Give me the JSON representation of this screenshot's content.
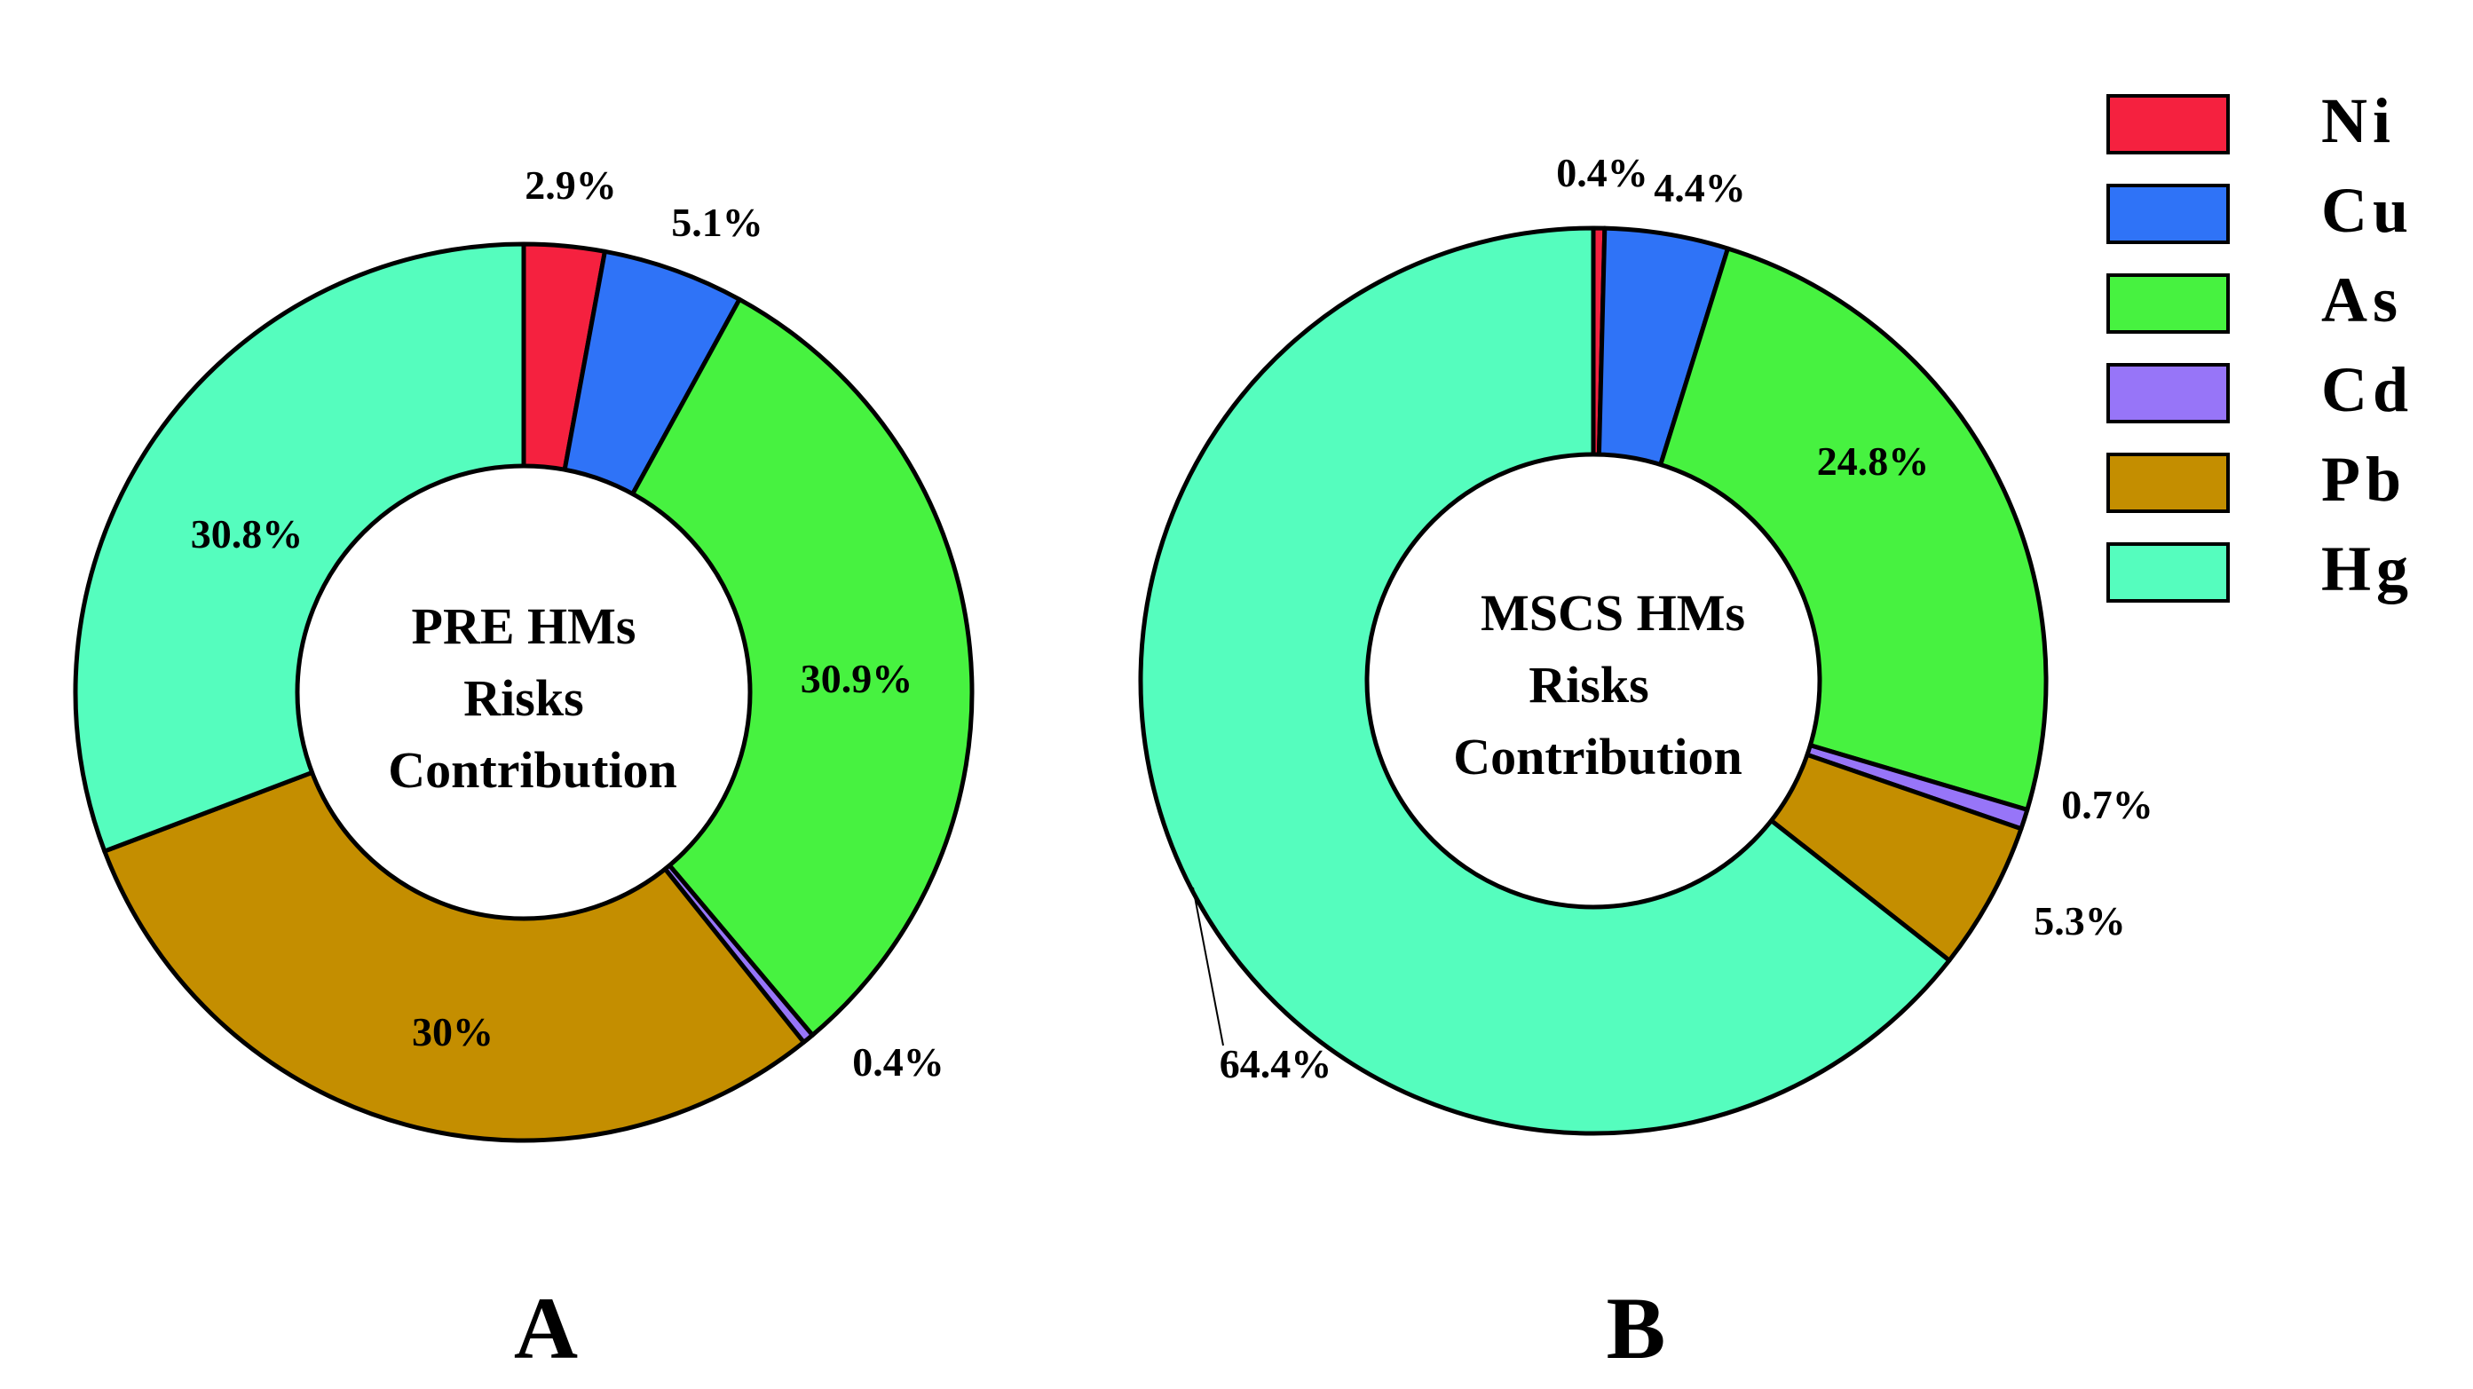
{
  "legend": {
    "items": [
      {
        "label": "Ni",
        "color": "#F5213F"
      },
      {
        "label": "Cu",
        "color": "#2F73F7"
      },
      {
        "label": "As",
        "color": "#47F240"
      },
      {
        "label": "Cd",
        "color": "#9775F8"
      },
      {
        "label": "Pb",
        "color": "#C48E00"
      },
      {
        "label": "Hg",
        "color": "#55FDBE"
      }
    ]
  },
  "chart_data": [
    {
      "type": "pie",
      "subtype": "donut",
      "panel_label": "A",
      "center_label": [
        "PRE HMs",
        "Risks",
        "Contribution"
      ],
      "slices": [
        {
          "name": "Ni",
          "value": 2.9,
          "label": "2.9%"
        },
        {
          "name": "Cu",
          "value": 5.1,
          "label": "5.1%"
        },
        {
          "name": "As",
          "value": 30.9,
          "label": "30.9%"
        },
        {
          "name": "Cd",
          "value": 0.4,
          "label": "0.4%"
        },
        {
          "name": "Pb",
          "value": 30.0,
          "label": "30%"
        },
        {
          "name": "Hg",
          "value": 30.8,
          "label": "30.8%"
        }
      ]
    },
    {
      "type": "pie",
      "subtype": "donut",
      "panel_label": "B",
      "center_label": [
        "MSCS HMs",
        "Risks",
        "Contribution"
      ],
      "slices": [
        {
          "name": "Ni",
          "value": 0.4,
          "label": "0.4%"
        },
        {
          "name": "Cu",
          "value": 4.4,
          "label": "4.4%"
        },
        {
          "name": "As",
          "value": 24.8,
          "label": "24.8%"
        },
        {
          "name": "Cd",
          "value": 0.7,
          "label": "0.7%"
        },
        {
          "name": "Pb",
          "value": 5.3,
          "label": "5.3%"
        },
        {
          "name": "Hg",
          "value": 64.4,
          "label": "64.4%"
        }
      ]
    }
  ]
}
